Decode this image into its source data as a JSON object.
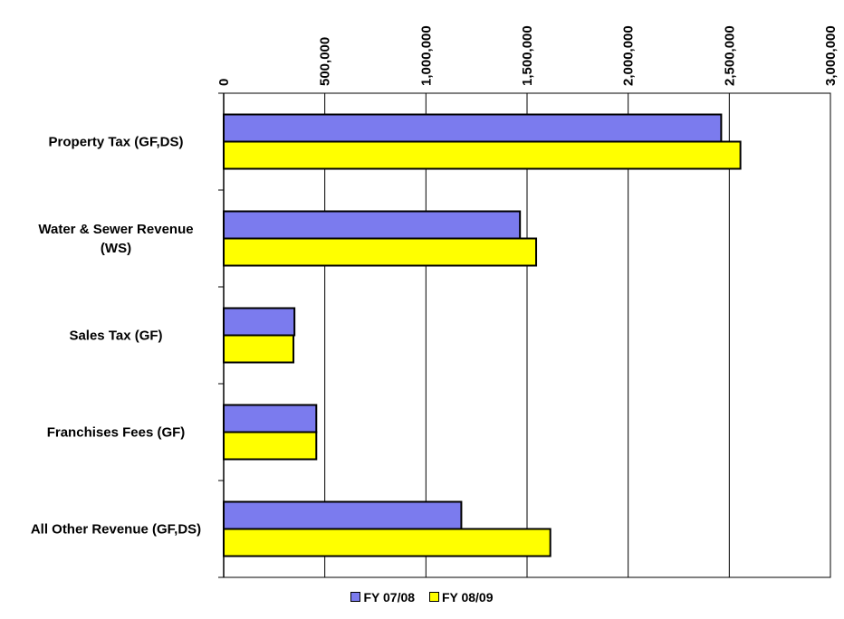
{
  "chart_data": {
    "type": "bar",
    "orientation": "horizontal",
    "title": "",
    "xlabel": "",
    "ylabel": "",
    "categories": [
      [
        "Property Tax (GF,DS)"
      ],
      [
        "Water & Sewer Revenue",
        "(WS)"
      ],
      [
        "Sales Tax (GF)"
      ],
      [
        "Franchises Fees (GF)"
      ],
      [
        "All Other Revenue (GF,DS)"
      ]
    ],
    "series": [
      {
        "name": "FY 07/08",
        "color": "#7B7BEE",
        "values": [
          2460000,
          1465000,
          350000,
          458000,
          1175000
        ]
      },
      {
        "name": "FY 08/09",
        "color": "#FFFF00",
        "values": [
          2555000,
          1545000,
          345000,
          458000,
          1615000
        ]
      }
    ],
    "xlim": [
      0,
      3000000
    ],
    "xticks": [
      0,
      500000,
      1000000,
      1500000,
      2000000,
      2500000,
      3000000
    ],
    "xtick_labels": [
      "0",
      "500,000",
      "1,000,000",
      "1,500,000",
      "2,000,000",
      "2,500,000",
      "3,000,000"
    ],
    "x_axis_position": "top",
    "grid": true,
    "legend_position": "bottom"
  }
}
